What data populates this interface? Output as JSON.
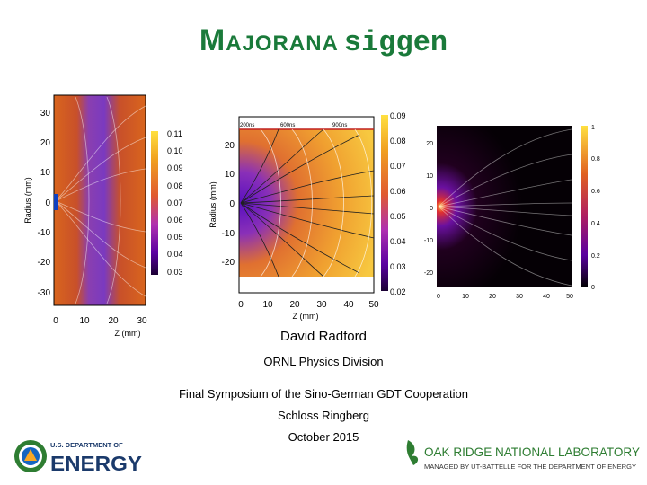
{
  "slide": {
    "title_cap": "M",
    "title_rest": "AJORANA",
    "title_code": "siggen",
    "author": "David Radford",
    "division": "ORNL Physics Division",
    "conference": "Final Symposium of the Sino-German GDT Cooperation",
    "venue": "Schloss Ringberg",
    "date": "October 2015"
  },
  "plot1": {
    "ylabel": "Radius (mm)",
    "xlabel": "Z (mm)",
    "yticks": [
      "30",
      "20",
      "10",
      "0",
      "-10",
      "-20",
      "-30"
    ],
    "xticks": [
      "0",
      "10",
      "20",
      "30"
    ],
    "colorbar_ticks": [
      "0.11",
      "0.10",
      "0.09",
      "0.08",
      "0.07",
      "0.06",
      "0.05",
      "0.04",
      "0.03"
    ]
  },
  "plot2": {
    "ylabel": "Radius (mm)",
    "xlabel": "Z (mm)",
    "yticks": [
      "20",
      "10",
      "0",
      "-10",
      "-20"
    ],
    "xticks": [
      "0",
      "10",
      "20",
      "30",
      "40",
      "50"
    ],
    "time_labels": [
      "200ns",
      "600ns",
      "900ns"
    ],
    "colorbar_ticks": [
      "0.09",
      "0.08",
      "0.07",
      "0.06",
      "0.05",
      "0.04",
      "0.03",
      "0.02"
    ]
  },
  "plot3": {
    "yticks": [
      "20",
      "10",
      "0",
      "-10",
      "-20"
    ],
    "xticks": [
      "0",
      "10",
      "20",
      "30",
      "40",
      "50"
    ],
    "colorbar_ticks": [
      "1",
      "0.8",
      "0.6",
      "0.4",
      "0.2",
      "0"
    ]
  },
  "logos": {
    "doe_small": "U.S. DEPARTMENT OF",
    "doe_big": "ENERGY",
    "ornl_name": "OAK RIDGE NATIONAL LABORATORY",
    "ornl_tagline": "MANAGED BY UT-BATTELLE FOR THE DEPARTMENT OF ENERGY"
  },
  "colors": {
    "title_green": "#1a7a3a",
    "doe_green": "#2e7d32",
    "ornl_green": "#2e7d32"
  }
}
